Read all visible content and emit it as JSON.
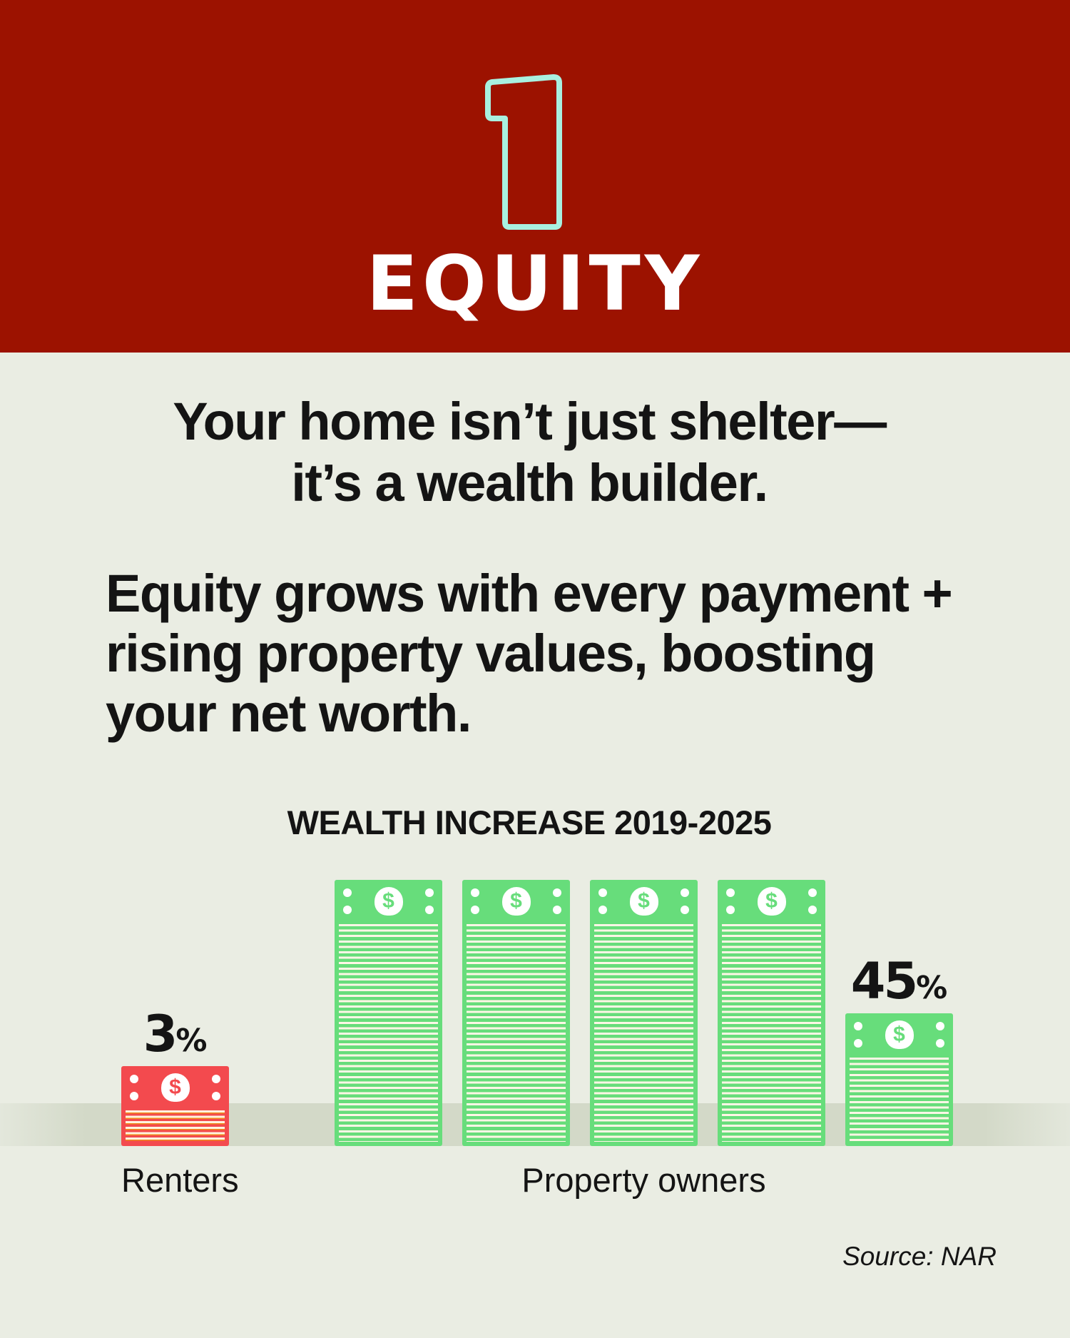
{
  "header": {
    "number": "1",
    "title": "EQUITY",
    "background_color": "#9c1200",
    "number_outline_color": "#a8f0e0"
  },
  "headline": {
    "line1": "Your home isn’t just shelter—",
    "line2": "it’s a wealth builder."
  },
  "body": {
    "line1": "Equity grows with every payment +",
    "line2": "rising property values, boosting",
    "line3": "your net worth."
  },
  "chart_data": {
    "type": "bar",
    "title": "WEALTH INCREASE 2019-2025",
    "categories": [
      "Renters",
      "Property owners"
    ],
    "values": [
      3,
      45
    ],
    "value_labels": [
      "3%",
      "45%"
    ],
    "unit": "%",
    "colors": [
      "#f34a4e",
      "#67dd7b"
    ],
    "mark_style": "stacked money bills (one full stack = 10%)",
    "grid": false,
    "legend": "none"
  },
  "source": "Source: NAR"
}
